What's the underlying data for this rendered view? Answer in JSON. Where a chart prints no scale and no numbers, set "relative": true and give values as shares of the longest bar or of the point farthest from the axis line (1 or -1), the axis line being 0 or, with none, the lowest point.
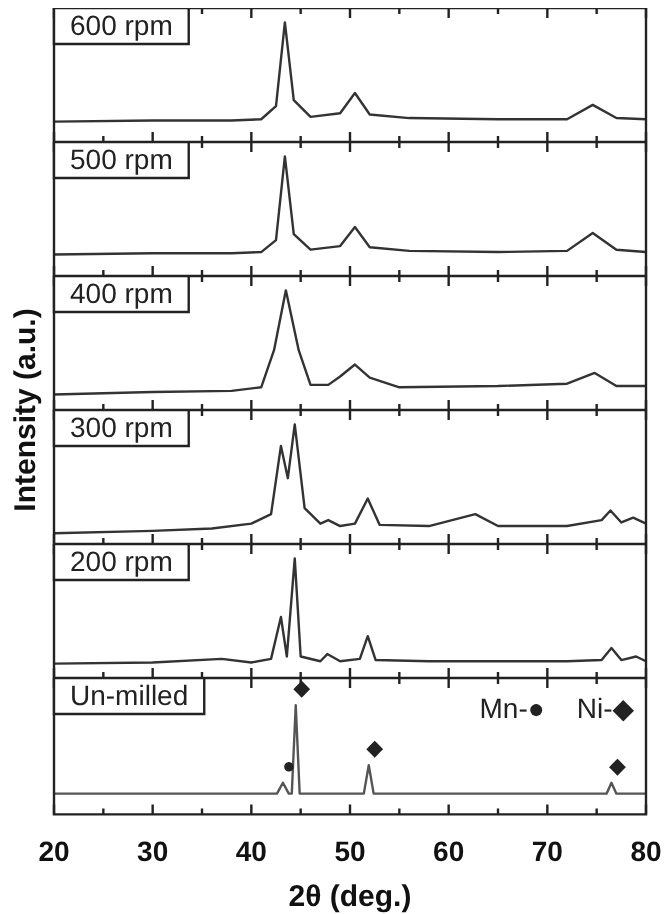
{
  "chart_data": [
    {
      "type": "line",
      "title": "600 rpm",
      "ylabel": "Intensity (a.u.)",
      "relative": true,
      "tick_labels": false,
      "xlim": [
        20,
        80
      ],
      "xticks": [
        20,
        {
          "value": 25,
          "label": null
        },
        30,
        {
          "value": 35,
          "label": null
        },
        40,
        {
          "value": 45,
          "label": null
        },
        50,
        {
          "value": 55,
          "label": null
        },
        60,
        {
          "value": 65,
          "label": null
        },
        70,
        {
          "value": 75,
          "label": null
        },
        80
      ],
      "series": [
        {
          "color": "#333333",
          "x": [
            20,
            30,
            38,
            41,
            42.5,
            43.4,
            44.3,
            46,
            49,
            50.5,
            52,
            56,
            65,
            72,
            74.6,
            77,
            80
          ],
          "values": [
            0.17,
            0.18,
            0.18,
            0.19,
            0.3,
            1,
            0.35,
            0.21,
            0.24,
            0.41,
            0.23,
            0.2,
            0.19,
            0.19,
            0.31,
            0.2,
            0.19
          ]
        }
      ]
    },
    {
      "type": "line",
      "title": "500 rpm",
      "relative": true,
      "tick_labels": false,
      "xlim": [
        20,
        80
      ],
      "xticks": [
        20,
        {
          "value": 25,
          "label": null
        },
        30,
        {
          "value": 35,
          "label": null
        },
        40,
        {
          "value": 45,
          "label": null
        },
        50,
        {
          "value": 55,
          "label": null
        },
        60,
        {
          "value": 65,
          "label": null
        },
        70,
        {
          "value": 75,
          "label": null
        },
        80
      ],
      "series": [
        {
          "color": "#333333",
          "x": [
            20,
            30,
            38,
            41,
            42.5,
            43.4,
            44.3,
            46,
            49,
            50.5,
            52,
            56,
            65,
            72,
            74.6,
            77,
            80
          ],
          "values": [
            0.18,
            0.19,
            0.19,
            0.2,
            0.3,
            1,
            0.35,
            0.22,
            0.25,
            0.41,
            0.24,
            0.21,
            0.2,
            0.21,
            0.36,
            0.22,
            0.2
          ]
        }
      ]
    },
    {
      "type": "line",
      "title": "400 rpm",
      "relative": true,
      "tick_labels": false,
      "xlim": [
        20,
        80
      ],
      "xticks": [
        20,
        {
          "value": 25,
          "label": null
        },
        30,
        {
          "value": 35,
          "label": null
        },
        40,
        {
          "value": 45,
          "label": null
        },
        50,
        {
          "value": 55,
          "label": null
        },
        60,
        {
          "value": 65,
          "label": null
        },
        70,
        {
          "value": 75,
          "label": null
        },
        80
      ],
      "series": [
        {
          "color": "#333333",
          "x": [
            20,
            30,
            38,
            41,
            42.3,
            43.5,
            44.8,
            46,
            47.8,
            49,
            50.5,
            52,
            55,
            65,
            72,
            74.8,
            77,
            80
          ],
          "values": [
            0.13,
            0.15,
            0.16,
            0.19,
            0.5,
            1,
            0.5,
            0.21,
            0.21,
            0.28,
            0.38,
            0.27,
            0.19,
            0.2,
            0.22,
            0.31,
            0.2,
            0.2
          ]
        }
      ]
    },
    {
      "type": "line",
      "title": "300 rpm",
      "relative": true,
      "tick_labels": false,
      "xlim": [
        20,
        80
      ],
      "xticks": [
        20,
        {
          "value": 25,
          "label": null
        },
        30,
        {
          "value": 35,
          "label": null
        },
        40,
        {
          "value": 45,
          "label": null
        },
        50,
        {
          "value": 55,
          "label": null
        },
        60,
        {
          "value": 65,
          "label": null
        },
        70,
        {
          "value": 75,
          "label": null
        },
        80
      ],
      "series": [
        {
          "color": "#333333",
          "x": [
            20,
            30,
            36,
            40,
            42,
            43,
            43.7,
            44.4,
            45.4,
            47,
            47.8,
            49,
            50.5,
            51.8,
            53,
            58,
            62.7,
            65,
            72,
            75.5,
            76.4,
            77.5,
            78.7,
            80
          ],
          "values": [
            0.09,
            0.11,
            0.13,
            0.17,
            0.25,
            0.82,
            0.55,
            1,
            0.3,
            0.17,
            0.2,
            0.15,
            0.17,
            0.38,
            0.16,
            0.15,
            0.25,
            0.15,
            0.15,
            0.2,
            0.28,
            0.18,
            0.22,
            0.17
          ]
        }
      ]
    },
    {
      "type": "line",
      "title": "200 rpm",
      "relative": true,
      "tick_labels": false,
      "xlim": [
        20,
        80
      ],
      "xticks": [
        20,
        {
          "value": 25,
          "label": null
        },
        30,
        {
          "value": 35,
          "label": null
        },
        40,
        {
          "value": 45,
          "label": null
        },
        50,
        {
          "value": 55,
          "label": null
        },
        60,
        {
          "value": 65,
          "label": null
        },
        70,
        {
          "value": 75,
          "label": null
        },
        80
      ],
      "series": [
        {
          "color": "#333333",
          "x": [
            20,
            30,
            37,
            40,
            42,
            43,
            43.6,
            44.4,
            45,
            47,
            47.7,
            49,
            51,
            51.8,
            52.6,
            58,
            65,
            72,
            75.5,
            76.5,
            77.5,
            79,
            80
          ],
          "values": [
            0.12,
            0.13,
            0.16,
            0.13,
            0.16,
            0.51,
            0.18,
            1,
            0.18,
            0.14,
            0.2,
            0.14,
            0.16,
            0.35,
            0.15,
            0.14,
            0.14,
            0.14,
            0.15,
            0.25,
            0.15,
            0.18,
            0.14
          ]
        }
      ]
    },
    {
      "type": "line",
      "title": "Un-milled",
      "xlabel": "2θ (deg.)",
      "relative": true,
      "tick_labels": "x",
      "xlim": [
        20,
        80
      ],
      "xticks": [
        20,
        {
          "value": 25,
          "label": null
        },
        30,
        {
          "value": 35,
          "label": null
        },
        40,
        {
          "value": 45,
          "label": null
        },
        50,
        {
          "value": 55,
          "label": null
        },
        60,
        {
          "value": 65,
          "label": null
        },
        70,
        {
          "value": 75,
          "label": null
        },
        80
      ],
      "series": [
        {
          "color": "#555555",
          "x": [
            20,
            30,
            40,
            42.6,
            43.2,
            43.8,
            44.1,
            44.5,
            44.9,
            50,
            51.4,
            51.9,
            52.4,
            60,
            70,
            76,
            76.5,
            77,
            80
          ],
          "values": [
            0.19,
            0.19,
            0.19,
            0.19,
            0.29,
            0.19,
            0.19,
            1,
            0.19,
            0.19,
            0.19,
            0.45,
            0.19,
            0.19,
            0.19,
            0.19,
            0.29,
            0.19,
            0.19
          ]
        }
      ],
      "annotations": [
        "Mn-●",
        "Ni-◆",
        {
          "text": "◆",
          "x": 44.5,
          "y": 1
        },
        {
          "text": "●",
          "x": 43.2,
          "y": 0.29
        },
        {
          "text": "◆",
          "x": 51.9,
          "y": 0.45
        },
        {
          "text": "◆",
          "x": 76.5,
          "y": 0.29
        }
      ]
    }
  ]
}
